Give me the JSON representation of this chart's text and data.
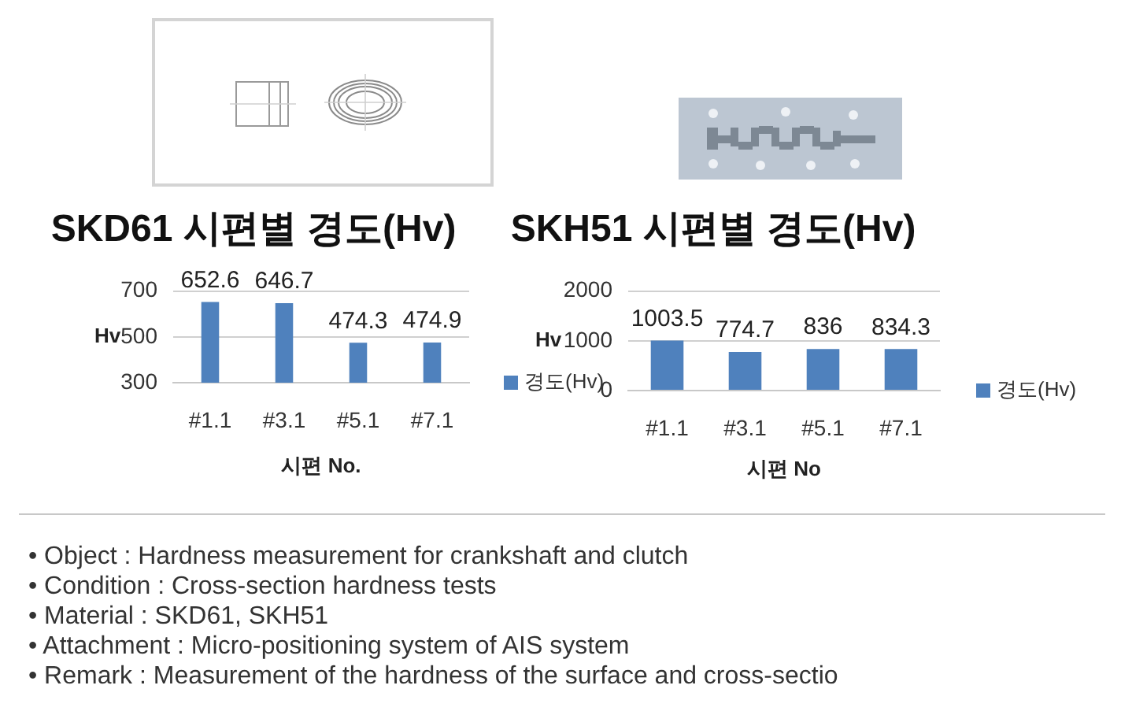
{
  "chart_data": [
    {
      "type": "bar",
      "title": "SKD61 시편별 경도(Hv)",
      "xlabel": "시편 No.",
      "ylabel": "Hv",
      "categories": [
        "#1.1",
        "#3.1",
        "#5.1",
        "#7.1"
      ],
      "series": [
        {
          "name": "경도(Hv)",
          "color": "#4f81bd",
          "values": [
            652.6,
            646.7,
            474.3,
            474.9
          ]
        }
      ],
      "ylim": [
        300,
        700
      ],
      "yticks": [
        300,
        500,
        700
      ],
      "grid": "y",
      "legend": "right",
      "data_labels": true
    },
    {
      "type": "bar",
      "title": "SKH51 시편별 경도(Hv)",
      "xlabel": "시편 No",
      "ylabel": "Hv",
      "categories": [
        "#1.1",
        "#3.1",
        "#5.1",
        "#7.1"
      ],
      "series": [
        {
          "name": "경도(Hv)",
          "color": "#4f81bd",
          "values": [
            1003.5,
            774.7,
            836,
            834.3
          ]
        }
      ],
      "ylim": [
        0,
        2000
      ],
      "yticks": [
        0,
        1000,
        2000
      ],
      "grid": "y",
      "legend": "right",
      "data_labels": true
    },
    {
      "type": "other",
      "annotations": [
        "• Object : Hardness measurement for crankshaft and clutch",
        "• Condition : Cross-section hardness tests",
        "• Material : SKD61, SKH51",
        "• Attachment : Micro-positioning system of AIS system",
        "• Remark : Measurement of the hardness of the surface and cross-sectio"
      ]
    }
  ]
}
